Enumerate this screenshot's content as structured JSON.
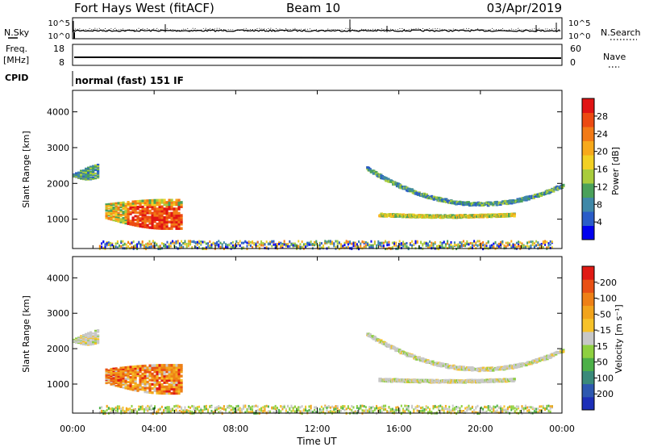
{
  "header": {
    "station": "Fort Hays West (fitACF)",
    "beam": "Beam 10",
    "date": "03/Apr/2019",
    "mode_label": "normal (fast) 151 IF"
  },
  "top_panels": {
    "nsky": {
      "label": "N.Sky",
      "left_ticks": [
        "10^5",
        "10^0"
      ],
      "right_label": "N.Search",
      "right_ticks": [
        "10^5",
        "10^0"
      ]
    },
    "freq": {
      "label_line1": "Freq.",
      "label_line2": "[MHz]",
      "left_ticks": [
        "18",
        "8"
      ],
      "right_label": "Nave",
      "right_ticks": [
        "60",
        "0"
      ]
    },
    "cpid_label": "CPID"
  },
  "chart_data": [
    {
      "type": "heatmap",
      "panel": "power",
      "ylabel": "Slant Range [km]",
      "xlabel": "",
      "ylim": [
        180,
        4600
      ],
      "yticks": [
        "1000",
        "2000",
        "3000",
        "4000"
      ],
      "x_range_hours": [
        0,
        24
      ],
      "colorbar": {
        "label": "Power [dB]",
        "ticks": [
          "4",
          "8",
          "12",
          "16",
          "20",
          "24",
          "28"
        ],
        "colors": [
          "#0000ee",
          "#2a5cc8",
          "#3f88a8",
          "#4aa15a",
          "#a9cc3c",
          "#f2d023",
          "#f7a91b",
          "#f27a16",
          "#ec4a12",
          "#e01414"
        ]
      },
      "features": [
        {
          "name": "near-range ground scatter",
          "t_start": 1.6,
          "t_end": 5.4,
          "r_low": 700,
          "r_high": 1550,
          "value_db": 24
        },
        {
          "name": "far-range patch",
          "t_start": 0.0,
          "t_end": 1.3,
          "r_low": 1950,
          "r_high": 2550,
          "value_db": 12
        },
        {
          "name": "upper arc",
          "t_start": 14.4,
          "t_end": 24.0,
          "r_low": 1450,
          "r_high": 2450,
          "value_db": 10
        },
        {
          "name": "lower arc",
          "t_start": 15.0,
          "t_end": 21.6,
          "r_low": 1100,
          "r_high": 1200,
          "value_db": 18
        },
        {
          "name": "low-range E-region scatter",
          "t_start": 1.3,
          "t_end": 23.5,
          "r_low": 200,
          "r_high": 420,
          "value_db": 8
        }
      ]
    },
    {
      "type": "heatmap",
      "panel": "velocity",
      "ylabel": "Slant Range [km]",
      "xlabel": "Time UT",
      "ylim": [
        180,
        4600
      ],
      "yticks": [
        "1000",
        "2000",
        "3000",
        "4000"
      ],
      "x_range_hours": [
        0,
        24
      ],
      "xticks": [
        "00:00",
        "04:00",
        "08:00",
        "12:00",
        "16:00",
        "20:00",
        "00:00"
      ],
      "colorbar": {
        "label": "Velocity [m s⁻¹]",
        "ticks": [
          "200",
          "100",
          "50",
          "15",
          "-15",
          "-50",
          "-100",
          "-200"
        ],
        "colors": [
          "#1c2fb8",
          "#2d58b0",
          "#3a8a7a",
          "#4cb048",
          "#8ed040",
          "#c8c8c8",
          "#f6c22a",
          "#f2a41c",
          "#ee8016",
          "#e85014",
          "#e01a14"
        ]
      },
      "features": [
        {
          "name": "near-range negative velocity",
          "t_start": 1.6,
          "t_end": 5.4,
          "r_low": 700,
          "r_high": 1550,
          "value_ms": -60
        },
        {
          "name": "far-range patch",
          "t_start": 0.0,
          "t_end": 1.3,
          "r_low": 1950,
          "r_high": 2550,
          "value_ms": 0
        },
        {
          "name": "upper arc",
          "t_start": 14.4,
          "t_end": 24.0,
          "r_low": 1450,
          "r_high": 2450,
          "value_ms": 0
        },
        {
          "name": "lower arc",
          "t_start": 15.0,
          "t_end": 21.6,
          "r_low": 1100,
          "r_high": 1200,
          "value_ms": 0
        },
        {
          "name": "low-range E-region scatter",
          "t_start": 1.3,
          "t_end": 23.5,
          "r_low": 200,
          "r_high": 420,
          "value_ms": 30
        }
      ]
    }
  ]
}
